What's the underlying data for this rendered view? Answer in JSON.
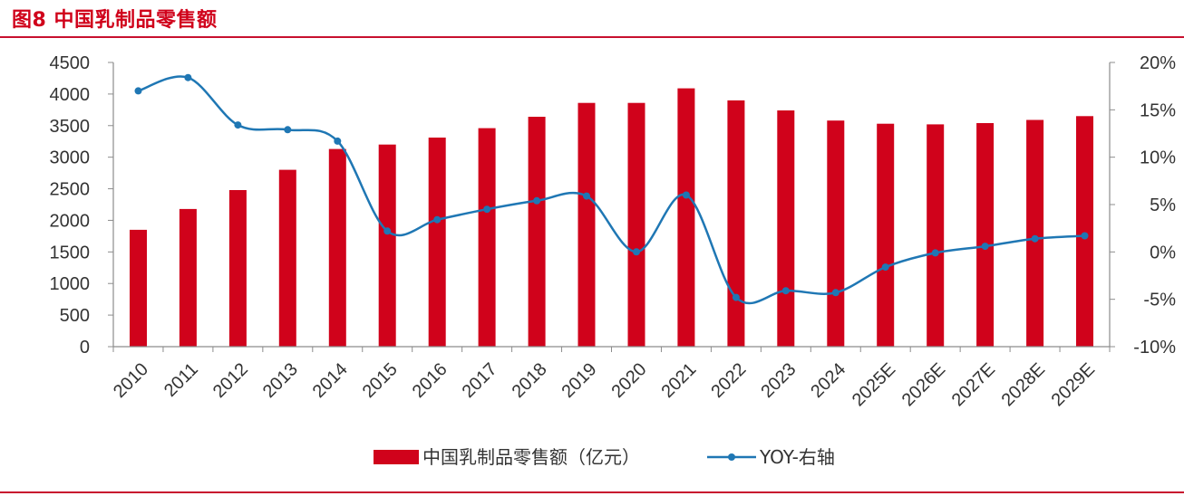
{
  "figure": {
    "title": "图8  中国乳制品零售额"
  },
  "colors": {
    "accent": "#c8102e",
    "bar": "#d0021b",
    "line": "#1f77b4"
  },
  "chart_data": {
    "type": "bar",
    "categories": [
      "2010",
      "2011",
      "2012",
      "2013",
      "2014",
      "2015",
      "2016",
      "2017",
      "2018",
      "2019",
      "2020",
      "2021",
      "2022",
      "2023",
      "2024",
      "2025E",
      "2026E",
      "2027E",
      "2028E",
      "2029E"
    ],
    "series": [
      {
        "name": "中国乳制品零售额（亿元）",
        "type": "bar",
        "axis": "left",
        "values": [
          1850,
          2180,
          2480,
          2800,
          3130,
          3200,
          3310,
          3460,
          3640,
          3860,
          3860,
          4090,
          3900,
          3740,
          3580,
          3530,
          3520,
          3540,
          3590,
          3650
        ]
      },
      {
        "name": "YOY-右轴",
        "type": "line",
        "axis": "right",
        "values": [
          17.0,
          18.4,
          13.4,
          12.9,
          11.7,
          2.2,
          3.4,
          4.5,
          5.4,
          5.9,
          0.0,
          6.0,
          -4.8,
          -4.1,
          -4.3,
          -1.6,
          -0.1,
          0.6,
          1.4,
          1.7
        ]
      }
    ],
    "y_left": {
      "min": 0,
      "max": 4500,
      "ticks": [
        "0",
        "500",
        "1000",
        "1500",
        "2000",
        "2500",
        "3000",
        "3500",
        "4000",
        "4500"
      ]
    },
    "y_right": {
      "min": -10,
      "max": 20,
      "ticks": [
        "-10%",
        "-5%",
        "0%",
        "5%",
        "10%",
        "15%",
        "20%"
      ]
    },
    "grid": false,
    "legend": "bottom"
  }
}
